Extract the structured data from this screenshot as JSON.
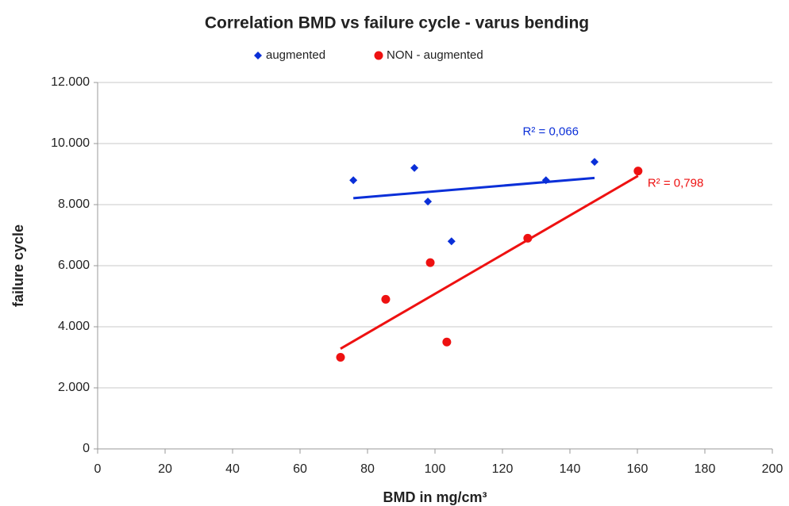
{
  "chart_data": {
    "type": "scatter",
    "title": "Correlation BMD vs failure cycle - varus bending",
    "x_label": "BMD in mg/cm³",
    "y_label": "failure cycle",
    "series": [
      {
        "name": "augmented",
        "color": "#0a2fd8",
        "marker": "diamond",
        "trendline": true,
        "trendline_label": "R² = 0,066",
        "x": [
          75.8,
          93.9,
          97.9,
          104.9,
          132.9,
          147.3
        ],
        "values": [
          8800,
          9200,
          8100,
          6800,
          8800,
          9400
        ]
      },
      {
        "name": "NON - augmented",
        "color": "#ee1111",
        "marker": "circle",
        "trendline": true,
        "trendline_label": "R² = 0,798",
        "x": [
          72,
          85.4,
          98.6,
          103.5,
          127.5,
          160.2
        ],
        "values": [
          3000,
          4900,
          6100,
          3500,
          6900,
          9100
        ]
      }
    ],
    "xlim": [
      0,
      200
    ],
    "xticks": [
      0,
      20,
      40,
      60,
      80,
      100,
      120,
      140,
      160,
      180,
      200
    ],
    "ylim": [
      0,
      12000
    ],
    "yticks": [
      0,
      {
        "value": 2000,
        "label": "2.000"
      },
      {
        "value": 4000,
        "label": "4.000"
      },
      {
        "value": 6000,
        "label": "6.000"
      },
      {
        "value": 8000,
        "label": "8.000"
      },
      {
        "value": 10000,
        "label": "10.000"
      },
      {
        "value": 12000,
        "label": "12.000"
      }
    ],
    "grid": true,
    "legend": "top"
  }
}
